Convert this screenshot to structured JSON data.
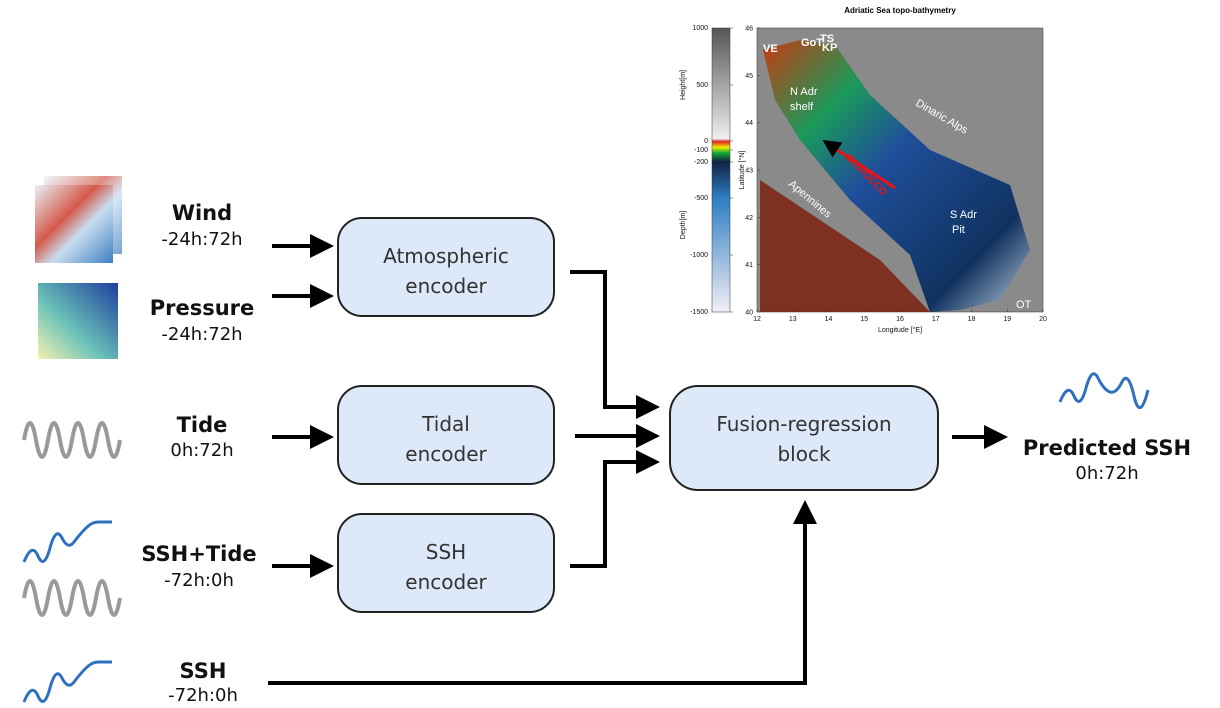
{
  "inputs": [
    {
      "name": "Wind",
      "window": "-24h:72h"
    },
    {
      "name": "Pressure",
      "window": "-24h:72h"
    },
    {
      "name": "Tide",
      "window": "0h:72h"
    },
    {
      "name": "SSH+Tide",
      "window": "-72h:0h"
    },
    {
      "name": "SSH",
      "window": "-72h:0h"
    }
  ],
  "encoders": [
    {
      "label": [
        "Atmospheric",
        "encoder"
      ]
    },
    {
      "label": [
        "Tidal",
        "encoder"
      ]
    },
    {
      "label": [
        "SSH",
        "encoder"
      ]
    }
  ],
  "fusion": {
    "label": [
      "Fusion-regression",
      "block"
    ]
  },
  "output": {
    "name": "Predicted SSH",
    "window": "0h:72h"
  },
  "map": {
    "title": "Adriatic Sea topo-bathymetry",
    "height_label": "Height[m]",
    "depth_label": "Depth[m]",
    "colorbar_ticks": [
      1000,
      500,
      0,
      -100,
      -200,
      -500,
      -1000,
      -1500
    ],
    "y_label": "Latitude [°N]",
    "yticks": [
      46,
      45,
      44,
      43,
      42,
      41,
      40
    ],
    "x_label": "Longitude [°E]",
    "xticks": [
      12,
      13,
      14,
      15,
      16,
      17,
      18,
      19,
      20
    ],
    "places": [
      "VE",
      "GoT",
      "TS",
      "KP",
      "N Adr",
      "shelf",
      "Dinaric Alps",
      "SCIROCCO",
      "Apennines",
      "S Adr",
      "Pit",
      "OT"
    ]
  }
}
